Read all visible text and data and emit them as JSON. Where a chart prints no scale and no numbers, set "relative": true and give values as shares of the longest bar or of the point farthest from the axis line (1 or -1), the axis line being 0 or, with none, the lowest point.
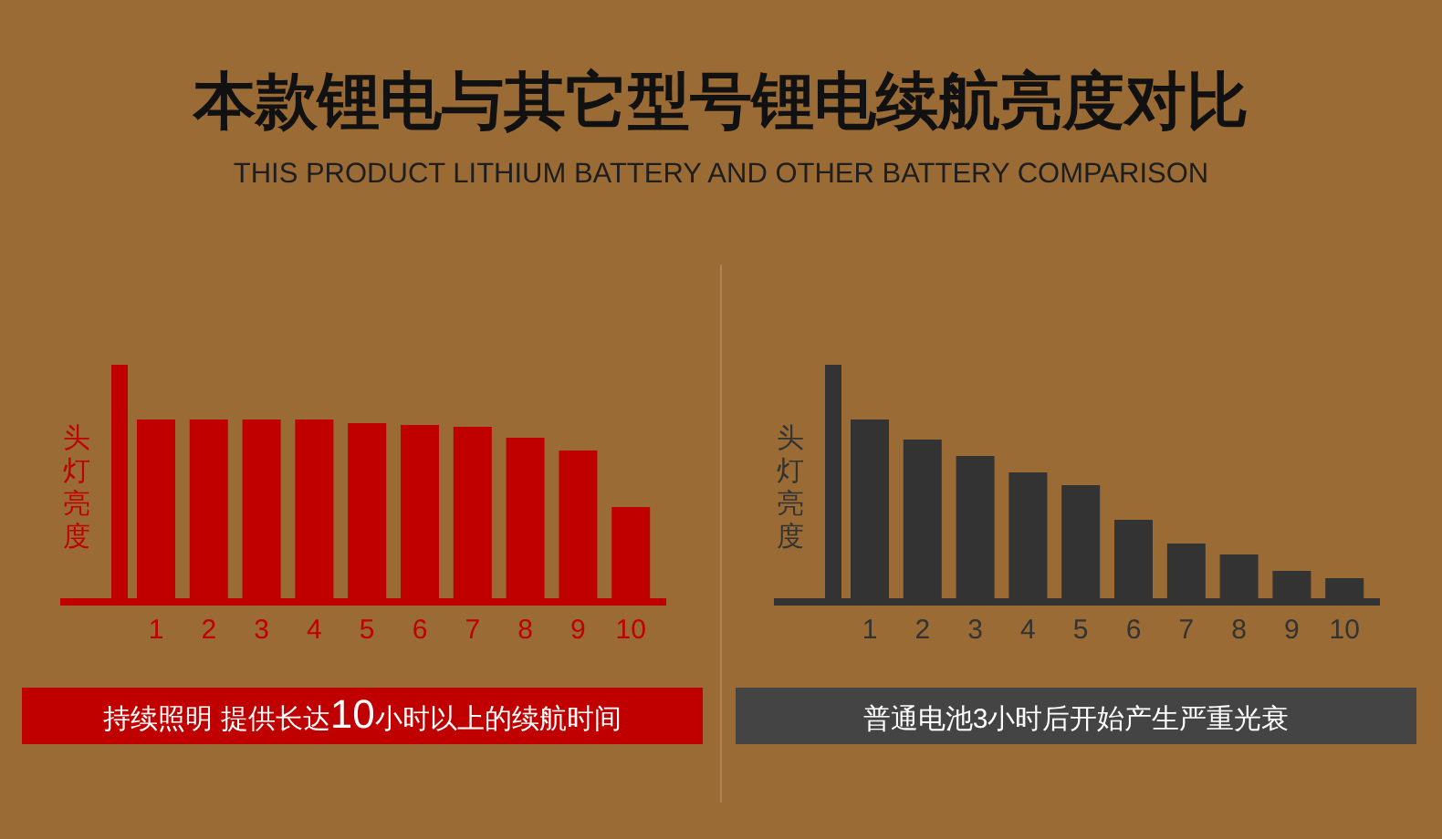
{
  "chart_data": [
    {
      "type": "bar",
      "title": "本款锂电与其它型号锂电续航亮度对比",
      "subtitle": "THIS PRODUCT LITHIUM BATTERY AND OTHER BATTERY COMPARISON",
      "ylabel": "头灯亮度",
      "relative": true,
      "categories": [
        "1",
        "2",
        "3",
        "4",
        "5",
        "6",
        "7",
        "8",
        "9",
        "10"
      ],
      "series": [
        {
          "color": "#c00000",
          "values": [
            1,
            1,
            1,
            1,
            0.98,
            0.97,
            0.96,
            0.9,
            0.83,
            0.52
          ]
        }
      ],
      "annotations": [
        "持续照明 提供长达10小时以上的续航时间"
      ]
    },
    {
      "type": "bar",
      "ylabel": "头灯亮度",
      "relative": true,
      "categories": [
        "1",
        "2",
        "3",
        "4",
        "5",
        "6",
        "7",
        "8",
        "9",
        "10"
      ],
      "series": [
        {
          "color": "#333333",
          "values": [
            1,
            0.89,
            0.8,
            0.71,
            0.64,
            0.45,
            0.32,
            0.26,
            0.17,
            0.13
          ]
        }
      ],
      "annotations": [
        "普通电池3小时后开始产生严重光衰"
      ]
    }
  ]
}
